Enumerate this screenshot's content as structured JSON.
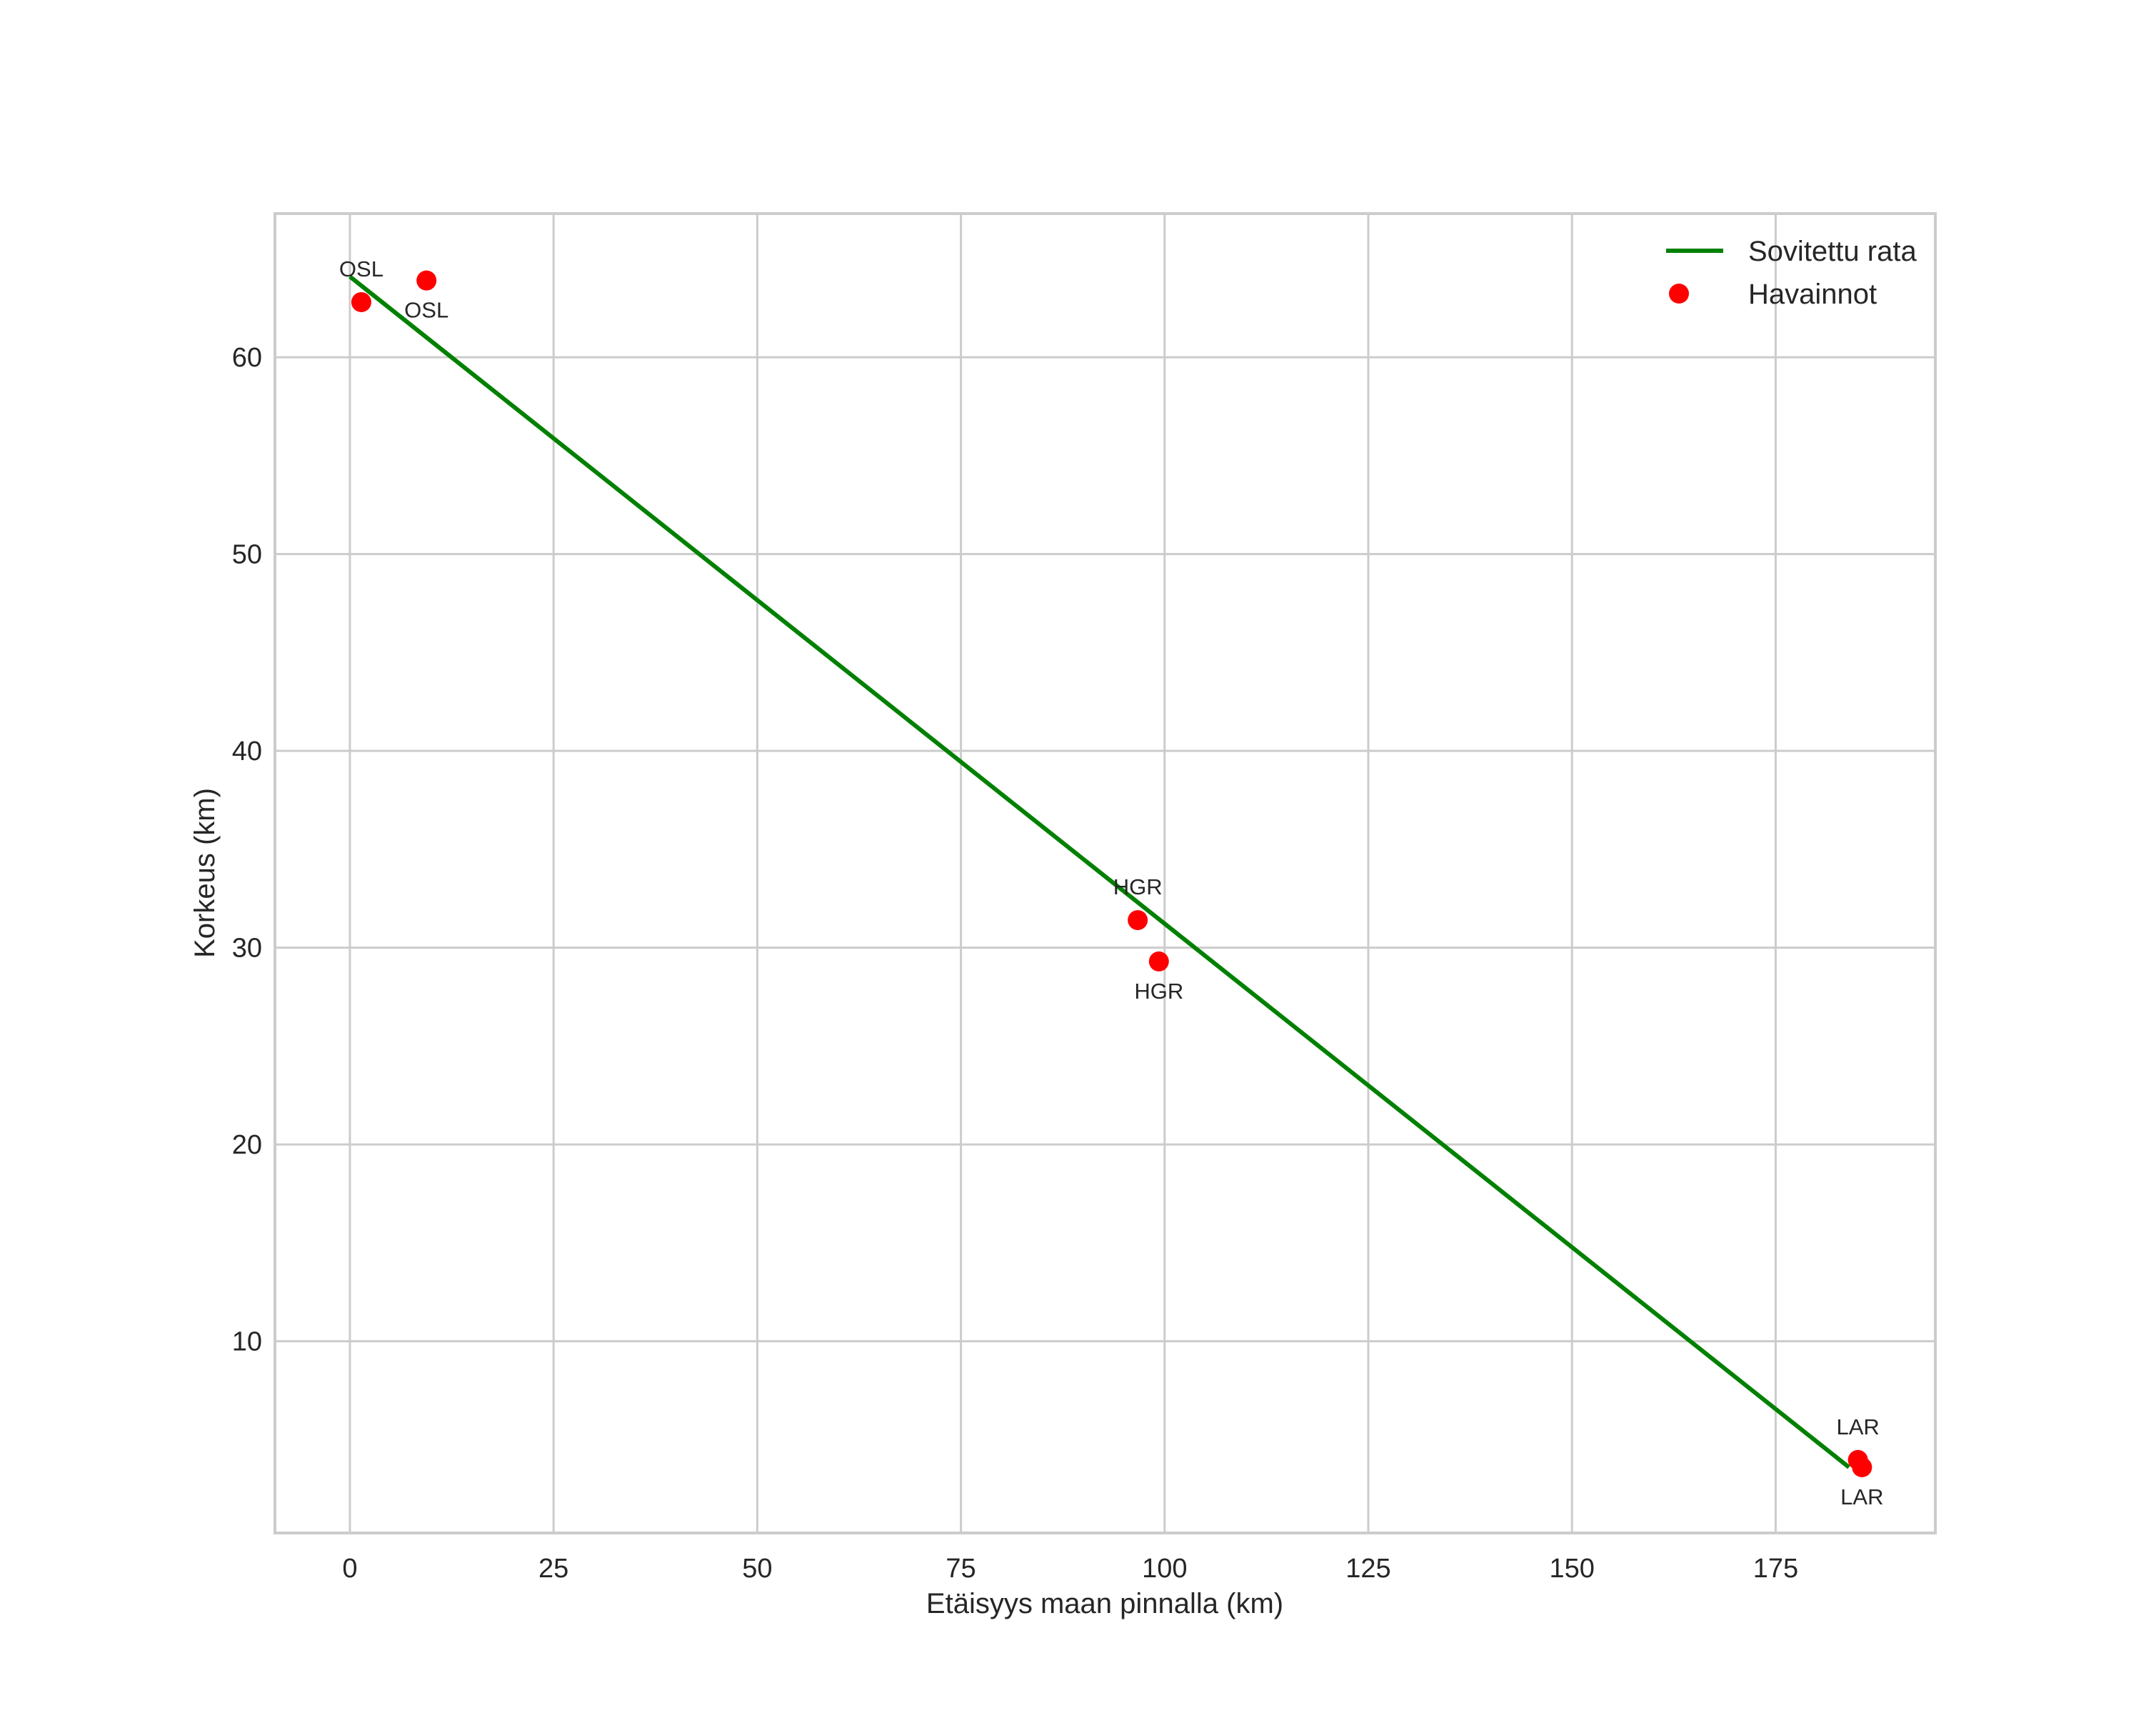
{
  "chart_data": {
    "type": "scatter+line",
    "title": "",
    "xlabel": "Etäisyys maan pinnalla (km)",
    "ylabel": "Korkeus (km)",
    "xlim": [
      -9.2,
      194.6
    ],
    "ylim": [
      0.26,
      67.3
    ],
    "grid": true,
    "legend_position": "upper right",
    "x_ticks": [
      0,
      25,
      50,
      75,
      100,
      125,
      150,
      175
    ],
    "y_ticks": [
      10,
      20,
      30,
      40,
      50,
      60
    ],
    "series": [
      {
        "name": "Sovitettu rata",
        "kind": "line",
        "color": "#008000",
        "points": [
          {
            "x": 0.0,
            "y": 64.1
          },
          {
            "x": 184.0,
            "y": 3.6
          }
        ]
      },
      {
        "name": "Havainnot",
        "kind": "scatter",
        "color": "#ff0000",
        "points": [
          {
            "x": 1.4,
            "y": 62.8,
            "label": "OSL",
            "label_pos": "above"
          },
          {
            "x": 9.4,
            "y": 63.9,
            "label": "OSL",
            "label_pos": "below"
          },
          {
            "x": 96.7,
            "y": 31.4,
            "label": "HGR",
            "label_pos": "above"
          },
          {
            "x": 99.3,
            "y": 29.3,
            "label": "HGR",
            "label_pos": "below"
          },
          {
            "x": 185.1,
            "y": 3.97,
            "label": "LAR",
            "label_pos": "above"
          },
          {
            "x": 185.6,
            "y": 3.6,
            "label": "LAR",
            "label_pos": "below"
          }
        ]
      }
    ]
  },
  "legend": {
    "items": [
      {
        "label": "Sovitettu rata",
        "marker": "line",
        "color": "#008000"
      },
      {
        "label": "Havainnot",
        "marker": "dot",
        "color": "#ff0000"
      }
    ]
  },
  "colors": {
    "grid": "#cccccc",
    "text": "#262626",
    "fit_line": "#008000",
    "observations": "#ff0000",
    "background": "#ffffff"
  }
}
